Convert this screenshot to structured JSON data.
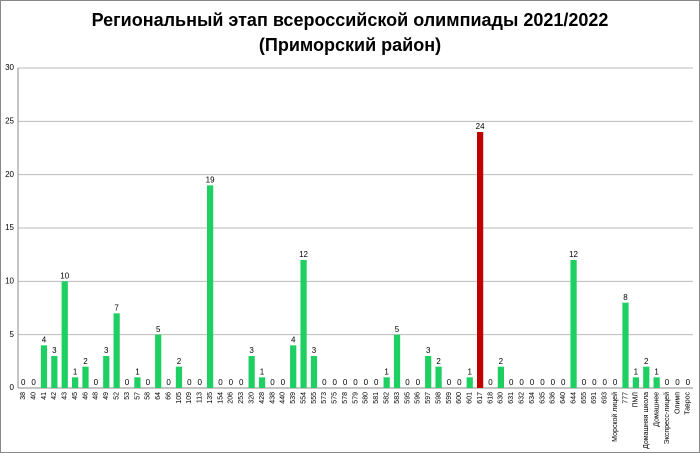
{
  "chart_data": {
    "type": "bar",
    "title": "Региональный этап всероссийской олимпиады 2021/2022",
    "subtitle": "(Приморский район)",
    "categories": [
      "38",
      "40",
      "41",
      "42",
      "43",
      "45",
      "46",
      "48",
      "49",
      "52",
      "53",
      "57",
      "58",
      "64",
      "66",
      "105",
      "109",
      "113",
      "135",
      "154",
      "206",
      "253",
      "320",
      "428",
      "438",
      "440",
      "539",
      "554",
      "555",
      "573",
      "575",
      "578",
      "579",
      "580",
      "581",
      "582",
      "583",
      "595",
      "596",
      "597",
      "598",
      "599",
      "600",
      "601",
      "617",
      "618",
      "630",
      "631",
      "632",
      "634",
      "635",
      "636",
      "640",
      "644",
      "655",
      "691",
      "693",
      "Морской лицей",
      "777",
      "ПМЛ",
      "Домашняя школа",
      "Домашнее",
      "Экспресс-лицей",
      "Олимп",
      "Таврос"
    ],
    "values": [
      0,
      0,
      4,
      3,
      10,
      1,
      2,
      0,
      3,
      7,
      0,
      1,
      0,
      5,
      0,
      2,
      0,
      0,
      19,
      0,
      0,
      0,
      3,
      1,
      0,
      0,
      4,
      12,
      3,
      0,
      0,
      0,
      0,
      0,
      0,
      1,
      5,
      0,
      0,
      3,
      2,
      0,
      0,
      1,
      24,
      0,
      2,
      0,
      0,
      0,
      0,
      0,
      0,
      12,
      0,
      0,
      0,
      0,
      8,
      1,
      2,
      1,
      0,
      0,
      0
    ],
    "color": "#1ecf62",
    "highlight": {
      "index": 44,
      "color": "#c00000"
    },
    "ylim": [
      0,
      30
    ],
    "yticks": [
      0,
      5,
      10,
      15,
      20,
      25,
      30
    ],
    "grid": true
  }
}
